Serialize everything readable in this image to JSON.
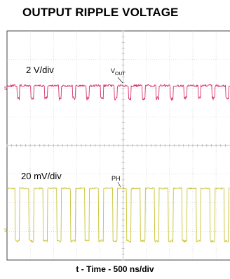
{
  "chart_data": {
    "type": "line",
    "title": "OUTPUT RIPPLE VOLTAGE",
    "xlabel": "t - Time - 500 ns/div",
    "grid": true,
    "series": [
      {
        "name": "VOUT",
        "label_main": "V",
        "label_sub": "OUT",
        "scale": "2 V/div",
        "marker": "5",
        "color": "#d6336c",
        "levels": [
          0,
          1
        ],
        "pattern_high_ns": 240,
        "pattern_low_ns": 60
      },
      {
        "name": "PH",
        "label_main": "PH",
        "scale": "20 mV/div",
        "marker": "5",
        "color": "#c8c234",
        "levels": [
          0,
          1
        ],
        "pattern_high_ns": 200,
        "pattern_low_ns": 100
      }
    ]
  }
}
